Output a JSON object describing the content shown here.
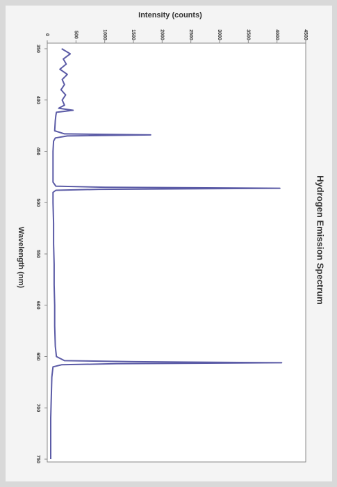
{
  "chart_data": {
    "type": "line",
    "title": "Hydrogen Emission Spectrum",
    "x_label": "Wavelength (nm)",
    "y_label": "Intensity (counts)",
    "x": [
      350,
      355,
      360,
      365,
      370,
      375,
      380,
      385,
      390,
      395,
      400,
      405,
      408,
      410,
      412,
      415,
      420,
      430,
      433,
      434,
      435,
      437,
      440,
      450,
      460,
      470,
      480,
      484,
      485,
      486,
      487,
      488,
      490,
      500,
      520,
      540,
      560,
      580,
      600,
      620,
      640,
      650,
      654,
      655,
      656,
      657,
      658,
      660,
      670,
      690,
      710,
      730,
      750
    ],
    "values": [
      250,
      400,
      280,
      330,
      220,
      350,
      260,
      300,
      240,
      320,
      260,
      300,
      200,
      450,
      160,
      150,
      140,
      130,
      300,
      1800,
      350,
      140,
      110,
      100,
      100,
      100,
      100,
      150,
      1000,
      4050,
      900,
      150,
      100,
      100,
      110,
      110,
      120,
      120,
      130,
      130,
      140,
      160,
      300,
      1500,
      4080,
      1200,
      250,
      100,
      80,
      70,
      60,
      60,
      60
    ],
    "color": "#5b5ba6",
    "xlim": [
      350,
      750
    ],
    "xticks": [
      350,
      400,
      450,
      500,
      550,
      600,
      650,
      700,
      750
    ],
    "ylim": [
      0,
      4500
    ],
    "yticks": [
      0,
      500,
      1000,
      1500,
      2000,
      2500,
      3000,
      3500,
      4000,
      4500
    ]
  }
}
